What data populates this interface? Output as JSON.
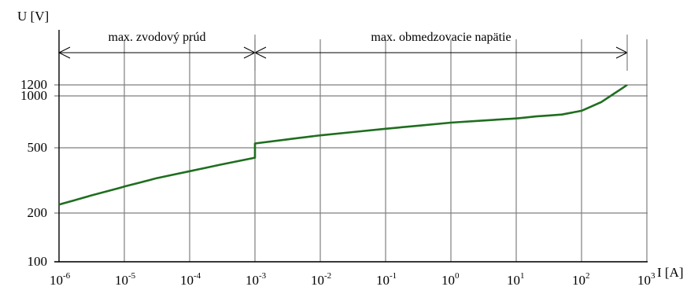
{
  "chart_data": {
    "type": "line",
    "title": "",
    "xlabel": "I [A]",
    "ylabel": "U [V]",
    "x_scale": "log",
    "y_scale": "log",
    "xlim": [
      1e-06,
      1000
    ],
    "ylim": [
      100,
      1200
    ],
    "grid": true,
    "x_ticks": [
      {
        "base": "10",
        "exp": "-6"
      },
      {
        "base": "10",
        "exp": "-5"
      },
      {
        "base": "10",
        "exp": "-4"
      },
      {
        "base": "10",
        "exp": "-3"
      },
      {
        "base": "10",
        "exp": "-2"
      },
      {
        "base": "10",
        "exp": "-1"
      },
      {
        "base": "10",
        "exp": "0"
      },
      {
        "base": "10",
        "exp": "1"
      },
      {
        "base": "10",
        "exp": "2"
      },
      {
        "base": "10",
        "exp": "3"
      }
    ],
    "y_ticks": [
      "100",
      "200",
      "500",
      "1000",
      "1200"
    ],
    "annotations": [
      {
        "text": "max. zvodový prúd",
        "from": 1e-06,
        "to": 0.001
      },
      {
        "text": "max. obmedzovacie napätie",
        "from": 0.001,
        "to": 500
      }
    ],
    "series": [
      {
        "color": "#1f6e1f",
        "points": [
          [
            1e-06,
            225
          ],
          [
            3e-06,
            255
          ],
          [
            1e-05,
            290
          ],
          [
            3e-05,
            325
          ],
          [
            0.0001,
            360
          ],
          [
            0.0003,
            395
          ],
          [
            0.001,
            435
          ],
          [
            0.001,
            530
          ],
          [
            0.01,
            590
          ],
          [
            0.1,
            645
          ],
          [
            1,
            700
          ],
          [
            10,
            740
          ],
          [
            20,
            760
          ],
          [
            50,
            780
          ],
          [
            100,
            820
          ],
          [
            200,
            920
          ],
          [
            500,
            1200
          ]
        ]
      }
    ]
  }
}
